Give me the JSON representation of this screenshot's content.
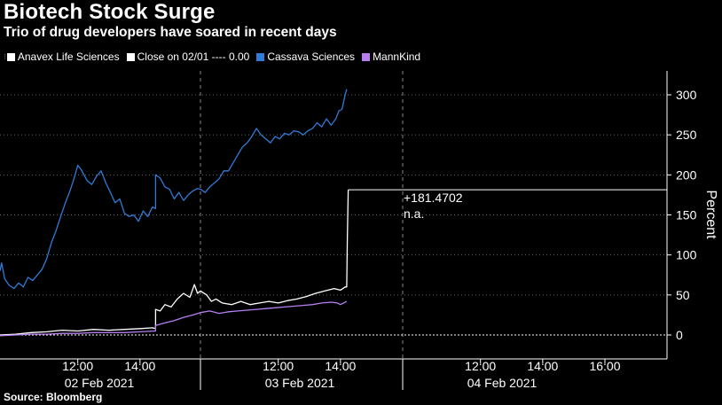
{
  "title": "Biotech Stock Surge",
  "subtitle": "Trio of drug developers have soared in recent days",
  "legend": {
    "anavex": "Anavex Life Sciences",
    "close": "Close on 02/01 ---- 0.00",
    "cassava": "Cassava Sciences",
    "mannkind": "MannKind"
  },
  "colors": {
    "anavex": "#ffffff",
    "close": "#ffffff",
    "cassava": "#2f7bd8",
    "mannkind": "#b77ef0",
    "background": "#000000"
  },
  "source": "Source: Bloomberg",
  "annotation": {
    "value": "+181.4702",
    "na": "n.a."
  },
  "chart_data": {
    "type": "line",
    "ylabel": "Percent",
    "ylim": [
      -20,
      320
    ],
    "yticks": [
      0,
      50,
      100,
      150,
      200,
      250,
      300
    ],
    "y_axis_position": "right",
    "x_unit": "trading hours",
    "days": [
      {
        "label": "02 Feb 2021",
        "hours": [
          "12:00",
          "14:00"
        ]
      },
      {
        "label": "03 Feb 2021",
        "hours": [
          "12:00",
          "14:00"
        ]
      },
      {
        "label": "04 Feb 2021",
        "hours": [
          "12:00",
          "14:00",
          "16:00"
        ]
      }
    ],
    "reference_line": {
      "name": "Close on 02/01",
      "value": 0
    },
    "last_value_line": 181.4702,
    "series": [
      {
        "name": "Cassava Sciences",
        "color": "#2f7bd8",
        "points": [
          [
            0,
            80
          ],
          [
            0.05,
            90
          ],
          [
            0.15,
            70
          ],
          [
            0.3,
            62
          ],
          [
            0.45,
            58
          ],
          [
            0.6,
            65
          ],
          [
            0.75,
            60
          ],
          [
            0.9,
            72
          ],
          [
            1.05,
            68
          ],
          [
            1.2,
            75
          ],
          [
            1.35,
            82
          ],
          [
            1.5,
            95
          ],
          [
            1.65,
            115
          ],
          [
            1.8,
            130
          ],
          [
            1.95,
            148
          ],
          [
            2.1,
            165
          ],
          [
            2.25,
            180
          ],
          [
            2.4,
            198
          ],
          [
            2.5,
            212
          ],
          [
            2.6,
            207
          ],
          [
            2.7,
            200
          ],
          [
            2.8,
            193
          ],
          [
            2.95,
            188
          ],
          [
            3.1,
            198
          ],
          [
            3.25,
            205
          ],
          [
            3.4,
            190
          ],
          [
            3.55,
            178
          ],
          [
            3.7,
            165
          ],
          [
            3.85,
            170
          ],
          [
            4.0,
            152
          ],
          [
            4.15,
            148
          ],
          [
            4.3,
            150
          ],
          [
            4.45,
            142
          ],
          [
            4.6,
            155
          ],
          [
            4.75,
            148
          ],
          [
            4.9,
            160
          ],
          [
            5.0,
            158
          ],
          [
            5.0,
            200
          ],
          [
            5.15,
            196
          ],
          [
            5.3,
            185
          ],
          [
            5.45,
            182
          ],
          [
            5.6,
            170
          ],
          [
            5.75,
            178
          ],
          [
            5.9,
            168
          ],
          [
            6.05,
            175
          ],
          [
            6.2,
            180
          ],
          [
            6.35,
            183
          ],
          [
            6.5,
            182
          ],
          [
            6.65,
            178
          ],
          [
            6.8,
            185
          ],
          [
            6.95,
            190
          ],
          [
            7.1,
            195
          ],
          [
            7.25,
            205
          ],
          [
            7.4,
            205
          ],
          [
            7.55,
            215
          ],
          [
            7.7,
            225
          ],
          [
            7.85,
            235
          ],
          [
            8.0,
            240
          ],
          [
            8.15,
            248
          ],
          [
            8.3,
            258
          ],
          [
            8.45,
            250
          ],
          [
            8.6,
            245
          ],
          [
            8.75,
            240
          ],
          [
            8.9,
            248
          ],
          [
            9.05,
            245
          ],
          [
            9.2,
            252
          ],
          [
            9.35,
            250
          ],
          [
            9.5,
            255
          ],
          [
            9.65,
            254
          ],
          [
            9.8,
            250
          ],
          [
            9.95,
            255
          ],
          [
            10.1,
            258
          ],
          [
            10.25,
            265
          ],
          [
            10.4,
            260
          ],
          [
            10.55,
            270
          ],
          [
            10.7,
            262
          ],
          [
            10.85,
            270
          ],
          [
            10.95,
            280
          ],
          [
            11.05,
            282
          ],
          [
            11.15,
            300
          ],
          [
            11.2,
            307
          ]
        ]
      },
      {
        "name": "Anavex Life Sciences",
        "color": "#ffffff",
        "points": [
          [
            0,
            0
          ],
          [
            0.5,
            1
          ],
          [
            1.0,
            3
          ],
          [
            1.5,
            4
          ],
          [
            2.0,
            6
          ],
          [
            2.5,
            5
          ],
          [
            3.0,
            7
          ],
          [
            3.5,
            6
          ],
          [
            4.0,
            7
          ],
          [
            4.5,
            8
          ],
          [
            4.9,
            9
          ],
          [
            5.0,
            8
          ],
          [
            5.0,
            32
          ],
          [
            5.15,
            30
          ],
          [
            5.3,
            38
          ],
          [
            5.5,
            35
          ],
          [
            5.7,
            45
          ],
          [
            5.9,
            52
          ],
          [
            6.1,
            47
          ],
          [
            6.25,
            63
          ],
          [
            6.35,
            52
          ],
          [
            6.5,
            55
          ],
          [
            6.7,
            50
          ],
          [
            6.85,
            42
          ],
          [
            7.0,
            45
          ],
          [
            7.2,
            40
          ],
          [
            7.5,
            38
          ],
          [
            7.8,
            42
          ],
          [
            8.1,
            38
          ],
          [
            8.4,
            40
          ],
          [
            8.7,
            42
          ],
          [
            9.0,
            40
          ],
          [
            9.3,
            43
          ],
          [
            9.6,
            45
          ],
          [
            9.9,
            48
          ],
          [
            10.2,
            52
          ],
          [
            10.5,
            55
          ],
          [
            10.8,
            58
          ],
          [
            11.0,
            56
          ],
          [
            11.15,
            60
          ],
          [
            11.2,
            60
          ],
          [
            11.22,
            120
          ],
          [
            11.25,
            181.4702
          ]
        ]
      },
      {
        "name": "MannKind",
        "color": "#b77ef0",
        "points": [
          [
            0,
            -1
          ],
          [
            0.5,
            0
          ],
          [
            1.0,
            1
          ],
          [
            1.5,
            1
          ],
          [
            2.0,
            2
          ],
          [
            2.5,
            2
          ],
          [
            3.0,
            3
          ],
          [
            3.5,
            3
          ],
          [
            4.0,
            3
          ],
          [
            4.5,
            4
          ],
          [
            5.0,
            5
          ],
          [
            5.0,
            12
          ],
          [
            5.3,
            15
          ],
          [
            5.6,
            18
          ],
          [
            5.9,
            22
          ],
          [
            6.2,
            25
          ],
          [
            6.5,
            28
          ],
          [
            6.8,
            30
          ],
          [
            7.1,
            27
          ],
          [
            7.4,
            29
          ],
          [
            7.7,
            30
          ],
          [
            8.0,
            31
          ],
          [
            8.3,
            32
          ],
          [
            8.6,
            33
          ],
          [
            8.9,
            34
          ],
          [
            9.2,
            35
          ],
          [
            9.5,
            36
          ],
          [
            9.8,
            37
          ],
          [
            10.1,
            38
          ],
          [
            10.4,
            40
          ],
          [
            10.7,
            41
          ],
          [
            10.9,
            40
          ],
          [
            11.0,
            38
          ],
          [
            11.1,
            40
          ],
          [
            11.2,
            42
          ]
        ]
      }
    ]
  }
}
